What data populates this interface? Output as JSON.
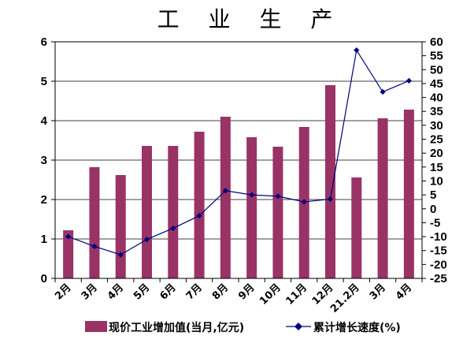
{
  "chart_data": {
    "type": "bar+line",
    "title": "工 业 生 产",
    "categories": [
      "2月",
      "3月",
      "4月",
      "5月",
      "6月",
      "7月",
      "8月",
      "9月",
      "10月",
      "11月",
      "12月",
      "21.2月",
      "3月",
      "4月"
    ],
    "series": [
      {
        "name": "现价工业增加值(当月,亿元)",
        "type": "bar",
        "axis": "left",
        "color": "#993366",
        "values": [
          1.22,
          2.82,
          2.62,
          3.36,
          3.36,
          3.72,
          4.1,
          3.58,
          3.34,
          3.84,
          4.9,
          2.56,
          4.06,
          4.28
        ]
      },
      {
        "name": "累计增长速度(%)",
        "type": "line",
        "axis": "right",
        "color": "#000080",
        "values": [
          -10,
          -13.5,
          -16.5,
          -11,
          -7,
          -2.5,
          6.5,
          5,
          4.5,
          2.5,
          3.5,
          57,
          42,
          46
        ]
      }
    ],
    "y_left": {
      "min": 0,
      "max": 6,
      "ticks": [
        "0",
        "1",
        "2",
        "3",
        "4",
        "5",
        "6"
      ]
    },
    "y_right": {
      "min": -25,
      "max": 60,
      "ticks": [
        "-25",
        "-20",
        "-15",
        "-10",
        "-5",
        "0",
        "5",
        "10",
        "15",
        "20",
        "25",
        "30",
        "35",
        "40",
        "45",
        "50",
        "55",
        "60"
      ]
    },
    "grid": "horizontal",
    "legend_position": "bottom"
  }
}
